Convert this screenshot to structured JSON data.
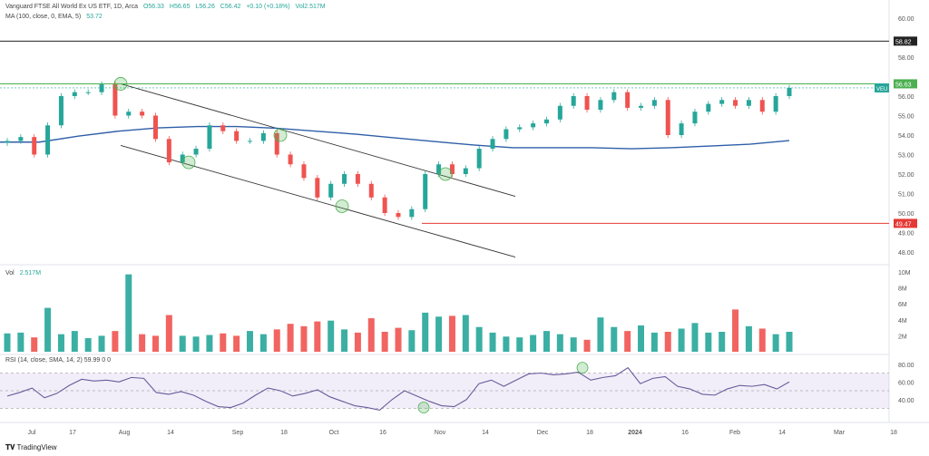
{
  "header": {
    "title": "Vanguard FTSE All World Ex US ETF, 1D, Arca",
    "open": "O56.33",
    "high": "H56.65",
    "low": "L56.26",
    "close": "C56.42",
    "change": "+0.10 (+0.18%)",
    "volume": "Vol2.517M",
    "ma_label": "MA (100, close, 0, EMA, 5)",
    "ma_value": "53.72"
  },
  "volume_legend": {
    "label": "Vol",
    "value": "2.517M"
  },
  "rsi_legend": {
    "label": "RSI (14, close, SMA, 14, 2)",
    "value": "59.99",
    "extra": "0 0"
  },
  "brand": "TradingView",
  "colors": {
    "up": "#26a69a",
    "down": "#ef5350",
    "ma": "#2f5ea8",
    "rsi": "#6a5a9a",
    "resistance": "#4caf50",
    "support": "#e53935",
    "level": "#222222"
  },
  "chart_data": [
    {
      "type": "candlestick",
      "title": "Vanguard FTSE All World Ex US ETF, 1D, Arca",
      "ylim": [
        47.5,
        61
      ],
      "y_ticks": [
        "48.00",
        "49.00",
        "50.00",
        "51.00",
        "52.00",
        "53.00",
        "54.00",
        "55.00",
        "56.00",
        "58.00",
        "60.00"
      ],
      "x_ticks": [
        "Jul",
        "17",
        "Aug",
        "14",
        "Sep",
        "18",
        "Oct",
        "16",
        "Nov",
        "14",
        "Dec",
        "18",
        "2024",
        "16",
        "Feb",
        "14",
        "Mar",
        "18"
      ],
      "closes": [
        53.7,
        53.9,
        53.0,
        54.5,
        56.0,
        56.2,
        56.2,
        56.6,
        55.0,
        55.2,
        55.0,
        53.8,
        52.6,
        53.0,
        53.3,
        54.5,
        54.2,
        53.7,
        53.7,
        54.1,
        53.0,
        52.5,
        51.8,
        50.8,
        51.5,
        52.0,
        51.5,
        50.8,
        50.0,
        49.8,
        50.2,
        52.0,
        52.5,
        52.0,
        52.3,
        53.3,
        53.8,
        54.3,
        54.4,
        54.6,
        54.8,
        55.5,
        56.0,
        55.3,
        55.8,
        56.2,
        55.4,
        55.5,
        55.8,
        54.0,
        54.6,
        55.2,
        55.6,
        55.8,
        55.5,
        55.8,
        55.2,
        56.0,
        56.42
      ],
      "ma_100_ema": [
        53.64,
        53.64,
        53.95,
        54.2,
        54.37,
        54.44,
        54.44,
        54.35,
        54.2,
        54.05,
        53.86,
        53.67,
        53.49,
        53.35,
        53.35,
        53.35,
        53.3,
        53.35,
        53.44,
        53.53,
        53.72
      ],
      "horizontal_levels": [
        {
          "label": "58.82",
          "value": 58.82,
          "color": "#222222"
        },
        {
          "label": "56.63",
          "value": 56.63,
          "color": "#4caf50"
        },
        {
          "label": "49.47",
          "value": 49.47,
          "color": "#e53935"
        }
      ],
      "last_price_tag": "VEU",
      "channel": {
        "upper": [
          56.63,
          50.86
        ],
        "lower": [
          53.47,
          47.74
        ]
      }
    },
    {
      "type": "bar",
      "title": "Vol",
      "ylim": [
        0,
        10
      ],
      "y_ticks": [
        "2M",
        "4M",
        "6M",
        "8M",
        "10M"
      ],
      "values_millions": [
        2.3,
        2.4,
        1.8,
        5.5,
        2.2,
        2.6,
        1.7,
        2.0,
        2.6,
        9.7,
        2.2,
        2.0,
        4.6,
        2.0,
        1.9,
        2.1,
        2.3,
        2.0,
        2.6,
        2.2,
        2.8,
        3.5,
        3.2,
        3.8,
        3.9,
        2.8,
        2.4,
        4.2,
        2.5,
        3.0,
        2.7,
        4.9,
        4.4,
        4.5,
        4.6,
        3.1,
        2.4,
        1.9,
        1.8,
        2.1,
        2.6,
        2.2,
        1.8,
        1.5,
        4.3,
        3.1,
        2.6,
        3.3,
        2.4,
        2.5,
        2.9,
        3.6,
        2.4,
        2.5,
        5.3,
        3.2,
        2.9,
        2.2,
        2.5
      ]
    },
    {
      "type": "line",
      "title": "RSI (14, close, SMA, 14, 2)",
      "ylim": [
        25,
        85
      ],
      "y_ticks": [
        "40.00",
        "60.00",
        "80.00"
      ],
      "band": [
        30,
        70
      ],
      "values": [
        44,
        48,
        53,
        42,
        47,
        56,
        63,
        61,
        62,
        60,
        65,
        64,
        48,
        46,
        49,
        45,
        38,
        32,
        31,
        36,
        45,
        53,
        50,
        44,
        47,
        51,
        43,
        38,
        33,
        31,
        28,
        40,
        50,
        44,
        38,
        33,
        32,
        40,
        58,
        62,
        55,
        62,
        69,
        70,
        68,
        69,
        71,
        62,
        65,
        67,
        76,
        58,
        64,
        66,
        55,
        52,
        46,
        45,
        52,
        56,
        55,
        57,
        52,
        60
      ]
    }
  ]
}
